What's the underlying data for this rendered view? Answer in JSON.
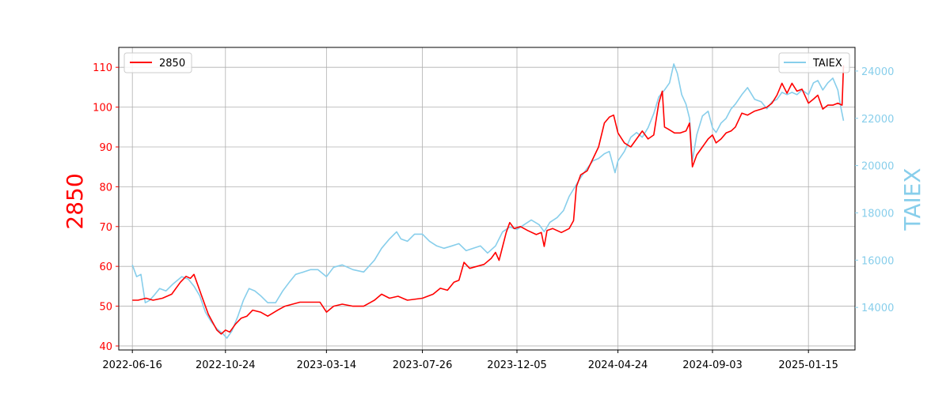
{
  "chart_data": {
    "type": "line",
    "title": "",
    "colors": {
      "left": "#ff0000",
      "right": "#87ceeb",
      "grid": "#b0b0b0",
      "axis": "#000000"
    },
    "grid": true,
    "x_type": "date",
    "x_range": [
      "2022-05-28",
      "2025-03-21"
    ],
    "x_ticks": [
      "2022-06-16",
      "2022-10-24",
      "2023-03-14",
      "2023-07-26",
      "2023-12-05",
      "2024-04-24",
      "2024-09-03",
      "2025-01-15"
    ],
    "y_left": {
      "label": "2850",
      "range": [
        39,
        115
      ],
      "ticks": [
        40,
        50,
        60,
        70,
        80,
        90,
        100,
        110
      ]
    },
    "y_right": {
      "label": "TAIEX",
      "range": [
        12200,
        25000
      ],
      "ticks": [
        14000,
        16000,
        18000,
        20000,
        22000,
        24000
      ]
    },
    "legend_left": {
      "label": "2850",
      "position": "top-left"
    },
    "legend_right": {
      "label": "TAIEX",
      "position": "top-right"
    },
    "series": [
      {
        "name": "2850",
        "axis": "left",
        "color": "#ff0000",
        "points": [
          [
            "2022-06-16",
            51.5
          ],
          [
            "2022-06-24",
            51.5
          ],
          [
            "2022-07-05",
            52.0
          ],
          [
            "2022-07-15",
            51.5
          ],
          [
            "2022-07-28",
            52.0
          ],
          [
            "2022-08-10",
            53.0
          ],
          [
            "2022-08-22",
            56.0
          ],
          [
            "2022-08-30",
            57.5
          ],
          [
            "2022-09-05",
            57.0
          ],
          [
            "2022-09-10",
            58.0
          ],
          [
            "2022-09-16",
            55.0
          ],
          [
            "2022-09-22",
            52.0
          ],
          [
            "2022-09-30",
            48.0
          ],
          [
            "2022-10-06",
            46.0
          ],
          [
            "2022-10-12",
            44.0
          ],
          [
            "2022-10-18",
            43.0
          ],
          [
            "2022-10-24",
            44.0
          ],
          [
            "2022-10-30",
            43.5
          ],
          [
            "2022-11-07",
            45.5
          ],
          [
            "2022-11-15",
            47.0
          ],
          [
            "2022-11-23",
            47.5
          ],
          [
            "2022-12-01",
            49.0
          ],
          [
            "2022-12-12",
            48.5
          ],
          [
            "2022-12-22",
            47.5
          ],
          [
            "2023-01-05",
            49.0
          ],
          [
            "2023-01-15",
            50.0
          ],
          [
            "2023-02-05",
            51.0
          ],
          [
            "2023-02-20",
            51.0
          ],
          [
            "2023-03-05",
            51.0
          ],
          [
            "2023-03-14",
            48.5
          ],
          [
            "2023-03-24",
            50.0
          ],
          [
            "2023-04-05",
            50.5
          ],
          [
            "2023-04-20",
            50.0
          ],
          [
            "2023-05-05",
            50.0
          ],
          [
            "2023-05-20",
            51.5
          ],
          [
            "2023-05-30",
            53.0
          ],
          [
            "2023-06-10",
            52.0
          ],
          [
            "2023-06-22",
            52.5
          ],
          [
            "2023-07-05",
            51.5
          ],
          [
            "2023-07-26",
            52.0
          ],
          [
            "2023-08-10",
            53.0
          ],
          [
            "2023-08-20",
            54.5
          ],
          [
            "2023-08-30",
            54.0
          ],
          [
            "2023-09-08",
            56.0
          ],
          [
            "2023-09-15",
            56.5
          ],
          [
            "2023-09-22",
            61.0
          ],
          [
            "2023-09-30",
            59.5
          ],
          [
            "2023-10-10",
            60.0
          ],
          [
            "2023-10-20",
            60.5
          ],
          [
            "2023-10-30",
            62.0
          ],
          [
            "2023-11-05",
            63.5
          ],
          [
            "2023-11-10",
            61.5
          ],
          [
            "2023-11-15",
            65.0
          ],
          [
            "2023-11-20",
            68.5
          ],
          [
            "2023-11-25",
            71.0
          ],
          [
            "2023-12-01",
            69.5
          ],
          [
            "2023-12-10",
            70.0
          ],
          [
            "2023-12-20",
            69.0
          ],
          [
            "2024-01-01",
            68.0
          ],
          [
            "2024-01-08",
            68.5
          ],
          [
            "2024-01-12",
            65.0
          ],
          [
            "2024-01-16",
            69.0
          ],
          [
            "2024-01-24",
            69.5
          ],
          [
            "2024-02-05",
            68.5
          ],
          [
            "2024-02-16",
            69.5
          ],
          [
            "2024-02-22",
            71.5
          ],
          [
            "2024-02-26",
            80.0
          ],
          [
            "2024-03-03",
            83.0
          ],
          [
            "2024-03-12",
            84.0
          ],
          [
            "2024-03-20",
            87.0
          ],
          [
            "2024-03-28",
            90.0
          ],
          [
            "2024-04-05",
            96.0
          ],
          [
            "2024-04-12",
            97.5
          ],
          [
            "2024-04-18",
            98.0
          ],
          [
            "2024-04-24",
            93.5
          ],
          [
            "2024-05-03",
            91.0
          ],
          [
            "2024-05-12",
            90.0
          ],
          [
            "2024-05-20",
            92.0
          ],
          [
            "2024-05-28",
            94.0
          ],
          [
            "2024-06-05",
            92.0
          ],
          [
            "2024-06-13",
            93.0
          ],
          [
            "2024-06-20",
            101.0
          ],
          [
            "2024-06-25",
            104.0
          ],
          [
            "2024-06-28",
            95.0
          ],
          [
            "2024-07-03",
            94.5
          ],
          [
            "2024-07-12",
            93.5
          ],
          [
            "2024-07-20",
            93.5
          ],
          [
            "2024-07-28",
            94.0
          ],
          [
            "2024-08-02",
            96.0
          ],
          [
            "2024-08-06",
            85.0
          ],
          [
            "2024-08-12",
            88.0
          ],
          [
            "2024-08-20",
            90.0
          ],
          [
            "2024-08-28",
            92.0
          ],
          [
            "2024-09-03",
            93.0
          ],
          [
            "2024-09-08",
            91.0
          ],
          [
            "2024-09-15",
            92.0
          ],
          [
            "2024-09-22",
            93.5
          ],
          [
            "2024-09-29",
            94.0
          ],
          [
            "2024-10-05",
            95.0
          ],
          [
            "2024-10-14",
            98.5
          ],
          [
            "2024-10-22",
            98.0
          ],
          [
            "2024-11-01",
            99.0
          ],
          [
            "2024-11-10",
            99.5
          ],
          [
            "2024-11-18",
            100.0
          ],
          [
            "2024-11-25",
            101.0
          ],
          [
            "2024-12-02",
            103.0
          ],
          [
            "2024-12-09",
            106.0
          ],
          [
            "2024-12-16",
            103.5
          ],
          [
            "2024-12-23",
            106.0
          ],
          [
            "2024-12-30",
            104.0
          ],
          [
            "2025-01-06",
            104.5
          ],
          [
            "2025-01-15",
            101.0
          ],
          [
            "2025-01-22",
            102.0
          ],
          [
            "2025-01-28",
            103.0
          ],
          [
            "2025-02-04",
            99.5
          ],
          [
            "2025-02-11",
            100.5
          ],
          [
            "2025-02-18",
            100.5
          ],
          [
            "2025-02-25",
            101.0
          ],
          [
            "2025-03-03",
            100.5
          ],
          [
            "2025-03-05",
            110.5
          ]
        ]
      },
      {
        "name": "TAIEX",
        "axis": "right",
        "color": "#87ceeb",
        "points": [
          [
            "2022-06-16",
            15800
          ],
          [
            "2022-06-22",
            15300
          ],
          [
            "2022-06-28",
            15400
          ],
          [
            "2022-07-04",
            14200
          ],
          [
            "2022-07-10",
            14300
          ],
          [
            "2022-07-16",
            14500
          ],
          [
            "2022-07-24",
            14800
          ],
          [
            "2022-08-02",
            14700
          ],
          [
            "2022-08-12",
            15000
          ],
          [
            "2022-08-24",
            15300
          ],
          [
            "2022-09-02",
            15200
          ],
          [
            "2022-09-10",
            14900
          ],
          [
            "2022-09-18",
            14500
          ],
          [
            "2022-09-26",
            13800
          ],
          [
            "2022-10-04",
            13400
          ],
          [
            "2022-10-12",
            13100
          ],
          [
            "2022-10-20",
            12900
          ],
          [
            "2022-10-26",
            12700
          ],
          [
            "2022-11-02",
            13000
          ],
          [
            "2022-11-10",
            13600
          ],
          [
            "2022-11-18",
            14300
          ],
          [
            "2022-11-26",
            14800
          ],
          [
            "2022-12-04",
            14700
          ],
          [
            "2022-12-12",
            14500
          ],
          [
            "2022-12-22",
            14200
          ],
          [
            "2023-01-02",
            14200
          ],
          [
            "2023-01-12",
            14700
          ],
          [
            "2023-01-22",
            15100
          ],
          [
            "2023-01-30",
            15400
          ],
          [
            "2023-02-10",
            15500
          ],
          [
            "2023-02-20",
            15600
          ],
          [
            "2023-03-02",
            15600
          ],
          [
            "2023-03-14",
            15300
          ],
          [
            "2023-03-24",
            15700
          ],
          [
            "2023-04-05",
            15800
          ],
          [
            "2023-04-20",
            15600
          ],
          [
            "2023-05-05",
            15500
          ],
          [
            "2023-05-20",
            16000
          ],
          [
            "2023-05-30",
            16500
          ],
          [
            "2023-06-10",
            16900
          ],
          [
            "2023-06-20",
            17200
          ],
          [
            "2023-06-26",
            16900
          ],
          [
            "2023-07-05",
            16800
          ],
          [
            "2023-07-15",
            17100
          ],
          [
            "2023-07-26",
            17100
          ],
          [
            "2023-08-05",
            16800
          ],
          [
            "2023-08-15",
            16600
          ],
          [
            "2023-08-25",
            16500
          ],
          [
            "2023-09-05",
            16600
          ],
          [
            "2023-09-15",
            16700
          ],
          [
            "2023-09-25",
            16400
          ],
          [
            "2023-10-05",
            16500
          ],
          [
            "2023-10-15",
            16600
          ],
          [
            "2023-10-25",
            16300
          ],
          [
            "2023-11-05",
            16600
          ],
          [
            "2023-11-15",
            17200
          ],
          [
            "2023-11-25",
            17400
          ],
          [
            "2023-12-05",
            17300
          ],
          [
            "2023-12-15",
            17500
          ],
          [
            "2023-12-25",
            17700
          ],
          [
            "2024-01-05",
            17500
          ],
          [
            "2024-01-12",
            17200
          ],
          [
            "2024-01-20",
            17600
          ],
          [
            "2024-01-30",
            17800
          ],
          [
            "2024-02-08",
            18100
          ],
          [
            "2024-02-16",
            18700
          ],
          [
            "2024-02-22",
            19000
          ],
          [
            "2024-03-01",
            19400
          ],
          [
            "2024-03-10",
            19800
          ],
          [
            "2024-03-20",
            20200
          ],
          [
            "2024-03-28",
            20300
          ],
          [
            "2024-04-05",
            20500
          ],
          [
            "2024-04-12",
            20600
          ],
          [
            "2024-04-20",
            19700
          ],
          [
            "2024-04-24",
            20200
          ],
          [
            "2024-05-03",
            20600
          ],
          [
            "2024-05-12",
            21200
          ],
          [
            "2024-05-20",
            21400
          ],
          [
            "2024-05-28",
            21200
          ],
          [
            "2024-06-05",
            21600
          ],
          [
            "2024-06-13",
            22200
          ],
          [
            "2024-06-20",
            22900
          ],
          [
            "2024-06-28",
            23200
          ],
          [
            "2024-07-05",
            23500
          ],
          [
            "2024-07-11",
            24300
          ],
          [
            "2024-07-16",
            23900
          ],
          [
            "2024-07-22",
            23000
          ],
          [
            "2024-07-28",
            22600
          ],
          [
            "2024-08-02",
            22000
          ],
          [
            "2024-08-06",
            20200
          ],
          [
            "2024-08-12",
            21300
          ],
          [
            "2024-08-20",
            22100
          ],
          [
            "2024-08-28",
            22300
          ],
          [
            "2024-09-03",
            21600
          ],
          [
            "2024-09-08",
            21400
          ],
          [
            "2024-09-15",
            21800
          ],
          [
            "2024-09-22",
            22000
          ],
          [
            "2024-09-29",
            22400
          ],
          [
            "2024-10-05",
            22600
          ],
          [
            "2024-10-14",
            23000
          ],
          [
            "2024-10-22",
            23300
          ],
          [
            "2024-11-01",
            22800
          ],
          [
            "2024-11-10",
            22700
          ],
          [
            "2024-11-18",
            22400
          ],
          [
            "2024-11-25",
            22700
          ],
          [
            "2024-12-02",
            22800
          ],
          [
            "2024-12-09",
            23100
          ],
          [
            "2024-12-16",
            23000
          ],
          [
            "2024-12-23",
            23100
          ],
          [
            "2024-12-30",
            23000
          ],
          [
            "2025-01-06",
            23200
          ],
          [
            "2025-01-15",
            23000
          ],
          [
            "2025-01-22",
            23500
          ],
          [
            "2025-01-28",
            23600
          ],
          [
            "2025-02-04",
            23200
          ],
          [
            "2025-02-11",
            23500
          ],
          [
            "2025-02-18",
            23700
          ],
          [
            "2025-02-25",
            23200
          ],
          [
            "2025-03-01",
            22500
          ],
          [
            "2025-03-05",
            21900
          ]
        ]
      }
    ]
  }
}
